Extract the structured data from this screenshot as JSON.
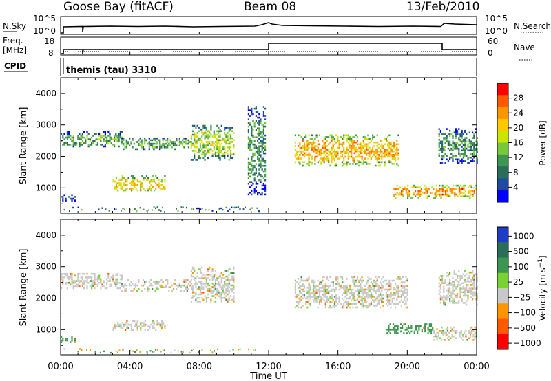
{
  "header": {
    "station": "Goose Bay (fitACF)",
    "beam": "Beam 08",
    "date": "13/Feb/2010"
  },
  "sky_panel": {
    "left_label": "N.Sky",
    "right_label": "N.Search",
    "left_ticks": [
      "10^5",
      "10^0"
    ],
    "right_ticks": [
      "10^5",
      "10^0"
    ]
  },
  "freq_panel": {
    "left_label_1": "Freq.",
    "left_label_2": "[MHz]",
    "right_label": "Nave",
    "left_ticks": [
      "18",
      "8"
    ],
    "right_ticks": [
      "60",
      "0"
    ]
  },
  "cpid": {
    "label": "CPID",
    "program": "themis (tau) 3310"
  },
  "power_colorbar": {
    "label": "Power [dB]",
    "ticks": [
      "28",
      "24",
      "20",
      "16",
      "12",
      "8",
      "4"
    ],
    "colors": [
      "#ff0000",
      "#ff5a00",
      "#ff9600",
      "#ffc800",
      "#c8e600",
      "#78c83c",
      "#3c9650",
      "#2a6e5a",
      "#1e4ba0",
      "#0000ff"
    ]
  },
  "velocity_colorbar": {
    "label": "Velocity [m s^-1]",
    "ticks": [
      "1000",
      "500",
      "100",
      "25",
      "-25",
      "-100",
      "-500",
      "-1000"
    ],
    "colors": [
      "#1e3cc8",
      "#2a6e5a",
      "#3c9650",
      "#78d232",
      "#c8c8c8",
      "#ff9600",
      "#ff5a00",
      "#ff0000"
    ]
  },
  "colors": {
    "ground_scatter": "#c8c8c8",
    "background": "#ffffff",
    "axis": "#000000"
  },
  "chart_data": [
    {
      "type": "heatmap",
      "title": "Power",
      "xlabel": "Time UT",
      "ylabel": "Slant Range [km]",
      "x_ticks": [
        "00:00",
        "04:00",
        "08:00",
        "12:00",
        "16:00",
        "20:00",
        "00:00"
      ],
      "xlim_hours": [
        0,
        24
      ],
      "ylim": [
        200,
        4500
      ],
      "y_ticks": [
        1000,
        2000,
        3000,
        4000
      ],
      "colorbar_range_db": [
        0,
        32
      ],
      "scatter_regions": [
        {
          "t_start": 0.0,
          "t_end": 3.5,
          "range_start": 2300,
          "range_end": 2800,
          "level_db": 12
        },
        {
          "t_start": 3.5,
          "t_end": 7.5,
          "range_start": 2250,
          "range_end": 2600,
          "level_db": 12
        },
        {
          "t_start": 7.5,
          "t_end": 10.0,
          "range_start": 1900,
          "range_end": 3000,
          "level_db": 16
        },
        {
          "t_start": 3.0,
          "t_end": 6.0,
          "range_start": 900,
          "range_end": 1400,
          "level_db": 20
        },
        {
          "t_start": 0.0,
          "t_end": 0.8,
          "range_start": 600,
          "range_end": 800,
          "level_db": 6
        },
        {
          "t_start": 10.8,
          "t_end": 11.8,
          "range_start": 800,
          "range_end": 3600,
          "level_db": 10
        },
        {
          "t_start": 13.5,
          "t_end": 19.5,
          "range_start": 1700,
          "range_end": 2700,
          "level_db": 22
        },
        {
          "t_start": 19.2,
          "t_end": 24.0,
          "range_start": 700,
          "range_end": 1100,
          "level_db": 24
        },
        {
          "t_start": 21.8,
          "t_end": 24.0,
          "range_start": 1800,
          "range_end": 2900,
          "level_db": 10
        }
      ]
    },
    {
      "type": "heatmap",
      "title": "Velocity",
      "xlabel": "Time UT",
      "ylabel": "Slant Range [km]",
      "x_ticks": [
        "00:00",
        "04:00",
        "08:00",
        "12:00",
        "16:00",
        "20:00",
        "00:00"
      ],
      "xlim_hours": [
        0,
        24
      ],
      "ylim": [
        200,
        4500
      ],
      "y_ticks": [
        1000,
        2000,
        3000,
        4000
      ],
      "colorbar_range": [
        -1000,
        1000
      ],
      "scatter_regions": [
        {
          "t_start": 0.0,
          "t_end": 3.5,
          "range_start": 2300,
          "range_end": 2800,
          "velocity": 0
        },
        {
          "t_start": 3.5,
          "t_end": 7.5,
          "range_start": 2250,
          "range_end": 2600,
          "velocity": 0
        },
        {
          "t_start": 7.5,
          "t_end": 10.0,
          "range_start": 1900,
          "range_end": 3000,
          "velocity": 0
        },
        {
          "t_start": 3.0,
          "t_end": 6.0,
          "range_start": 1000,
          "range_end": 1300,
          "velocity": 0
        },
        {
          "t_start": 0.0,
          "t_end": 0.8,
          "range_start": 600,
          "range_end": 800,
          "velocity": 150
        },
        {
          "t_start": 13.5,
          "t_end": 20.0,
          "range_start": 1700,
          "range_end": 2700,
          "velocity": 0
        },
        {
          "t_start": 18.8,
          "t_end": 21.5,
          "range_start": 900,
          "range_end": 1200,
          "velocity": 120
        },
        {
          "t_start": 21.5,
          "t_end": 24.0,
          "range_start": 700,
          "range_end": 1100,
          "velocity": 0
        },
        {
          "t_start": 21.8,
          "t_end": 24.0,
          "range_start": 1800,
          "range_end": 2900,
          "velocity": 0
        }
      ]
    }
  ]
}
